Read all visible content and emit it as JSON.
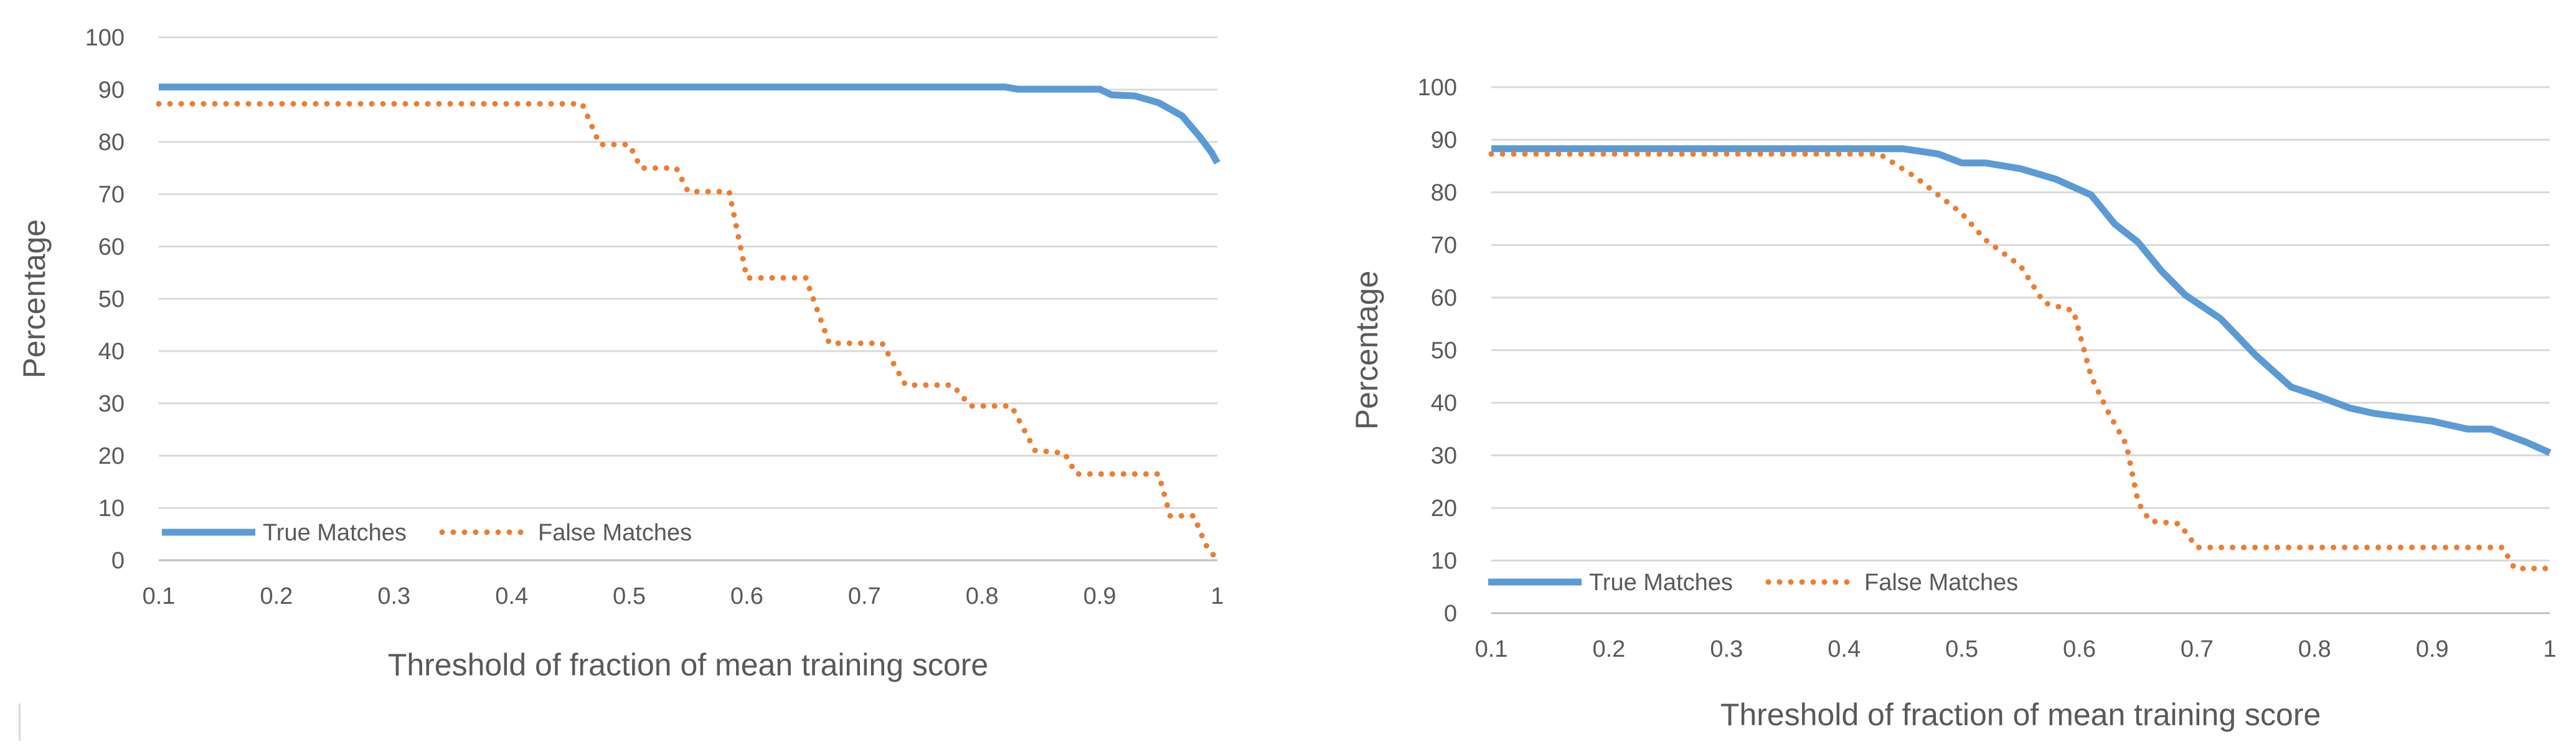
{
  "colors": {
    "true_matches": "#5b9bd5",
    "false_matches": "#ed7d31"
  },
  "chart_data": [
    {
      "type": "line",
      "title": "",
      "xlabel": "Threshold of fraction of mean training score",
      "ylabel": "Percentage",
      "xlim": [
        0.1,
        1
      ],
      "ylim": [
        0,
        100
      ],
      "x_ticks": [
        "0.1",
        "0.2",
        "0.3",
        "0.4",
        "0.5",
        "0.6",
        "0.7",
        "0.8",
        "0.9",
        "1"
      ],
      "y_ticks": [
        "0",
        "10",
        "20",
        "30",
        "40",
        "50",
        "60",
        "70",
        "80",
        "90",
        "100"
      ],
      "grid": true,
      "legend_position": "bottom-left",
      "series": [
        {
          "name": "True Matches",
          "style": "solid",
          "color": "#5b9bd5",
          "points": [
            [
              0.1,
              90.5
            ],
            [
              0.5,
              90.5
            ],
            [
              0.82,
              90.5
            ],
            [
              0.83,
              90.1
            ],
            [
              0.9,
              90.1
            ],
            [
              0.91,
              89
            ],
            [
              0.93,
              88.8
            ],
            [
              0.95,
              87.5
            ],
            [
              0.97,
              85
            ],
            [
              0.985,
              81
            ],
            [
              0.995,
              78
            ],
            [
              1.0,
              76
            ]
          ]
        },
        {
          "name": "False Matches",
          "style": "dotted",
          "color": "#ed7d31",
          "points": [
            [
              0.1,
              87.3
            ],
            [
              0.46,
              87.3
            ],
            [
              0.475,
              79.5
            ],
            [
              0.5,
              79.5
            ],
            [
              0.51,
              75
            ],
            [
              0.54,
              75
            ],
            [
              0.55,
              70.5
            ],
            [
              0.585,
              70.5
            ],
            [
              0.6,
              54
            ],
            [
              0.65,
              54
            ],
            [
              0.67,
              41.5
            ],
            [
              0.715,
              41.5
            ],
            [
              0.735,
              33.5
            ],
            [
              0.775,
              33.5
            ],
            [
              0.79,
              29.5
            ],
            [
              0.825,
              29.5
            ],
            [
              0.845,
              21
            ],
            [
              0.87,
              20.5
            ],
            [
              0.88,
              16.5
            ],
            [
              0.95,
              16.5
            ],
            [
              0.96,
              8.5
            ],
            [
              0.98,
              8.5
            ],
            [
              0.99,
              3
            ],
            [
              1.0,
              0
            ]
          ]
        }
      ]
    },
    {
      "type": "line",
      "title": "",
      "xlabel": "Threshold of fraction of mean training score",
      "ylabel": "Percentage",
      "xlim": [
        0.1,
        1
      ],
      "ylim": [
        0,
        100
      ],
      "x_ticks": [
        "0.1",
        "0.2",
        "0.3",
        "0.4",
        "0.5",
        "0.6",
        "0.7",
        "0.8",
        "0.9",
        "1"
      ],
      "y_ticks": [
        "0",
        "10",
        "20",
        "30",
        "40",
        "50",
        "60",
        "70",
        "80",
        "90",
        "100"
      ],
      "grid": true,
      "legend_position": "bottom-left",
      "series": [
        {
          "name": "True Matches",
          "style": "solid",
          "color": "#5b9bd5",
          "points": [
            [
              0.1,
              88.3
            ],
            [
              0.45,
              88.3
            ],
            [
              0.48,
              87.3
            ],
            [
              0.5,
              85.6
            ],
            [
              0.52,
              85.6
            ],
            [
              0.55,
              84.5
            ],
            [
              0.58,
              82.5
            ],
            [
              0.61,
              79.5
            ],
            [
              0.63,
              74
            ],
            [
              0.65,
              70.5
            ],
            [
              0.67,
              65
            ],
            [
              0.69,
              60.5
            ],
            [
              0.72,
              56
            ],
            [
              0.75,
              49
            ],
            [
              0.78,
              43
            ],
            [
              0.8,
              41.5
            ],
            [
              0.83,
              39
            ],
            [
              0.85,
              38
            ],
            [
              0.9,
              36.5
            ],
            [
              0.93,
              35
            ],
            [
              0.95,
              35
            ],
            [
              0.98,
              32.5
            ],
            [
              1.0,
              30.5
            ]
          ]
        },
        {
          "name": "False Matches",
          "style": "dotted",
          "color": "#ed7d31",
          "points": [
            [
              0.1,
              87.3
            ],
            [
              0.43,
              87.3
            ],
            [
              0.46,
              83
            ],
            [
              0.48,
              79.5
            ],
            [
              0.5,
              76
            ],
            [
              0.52,
              71
            ],
            [
              0.55,
              66
            ],
            [
              0.57,
              59
            ],
            [
              0.595,
              57.5
            ],
            [
              0.61,
              45
            ],
            [
              0.625,
              38
            ],
            [
              0.64,
              32
            ],
            [
              0.65,
              21
            ],
            [
              0.66,
              17.5
            ],
            [
              0.685,
              17
            ],
            [
              0.7,
              12.5
            ],
            [
              0.96,
              12.5
            ],
            [
              0.97,
              8.5
            ],
            [
              1.0,
              8.5
            ]
          ]
        }
      ]
    }
  ]
}
